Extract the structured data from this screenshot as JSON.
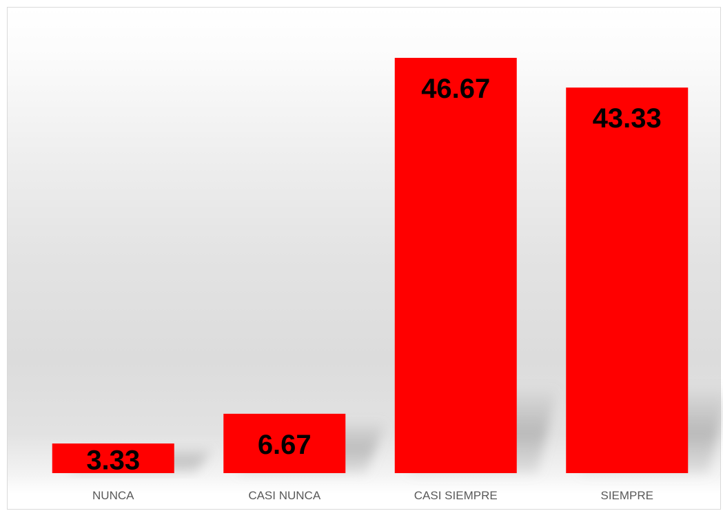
{
  "chart_data": {
    "type": "bar",
    "title": "",
    "xlabel": "",
    "ylabel": "",
    "categories": [
      "NUNCA",
      "CASI NUNCA",
      "CASI SIEMPRE",
      "SIEMPRE"
    ],
    "values": [
      3.33,
      6.67,
      46.67,
      43.33
    ],
    "data_labels": [
      "3.33",
      "6.67",
      "46.67",
      "43.33"
    ],
    "ylim": [
      0,
      52
    ],
    "grid": false,
    "legend": "none",
    "bar_color": "#ff0000",
    "label_color": "#000000",
    "category_color": "#595959"
  }
}
